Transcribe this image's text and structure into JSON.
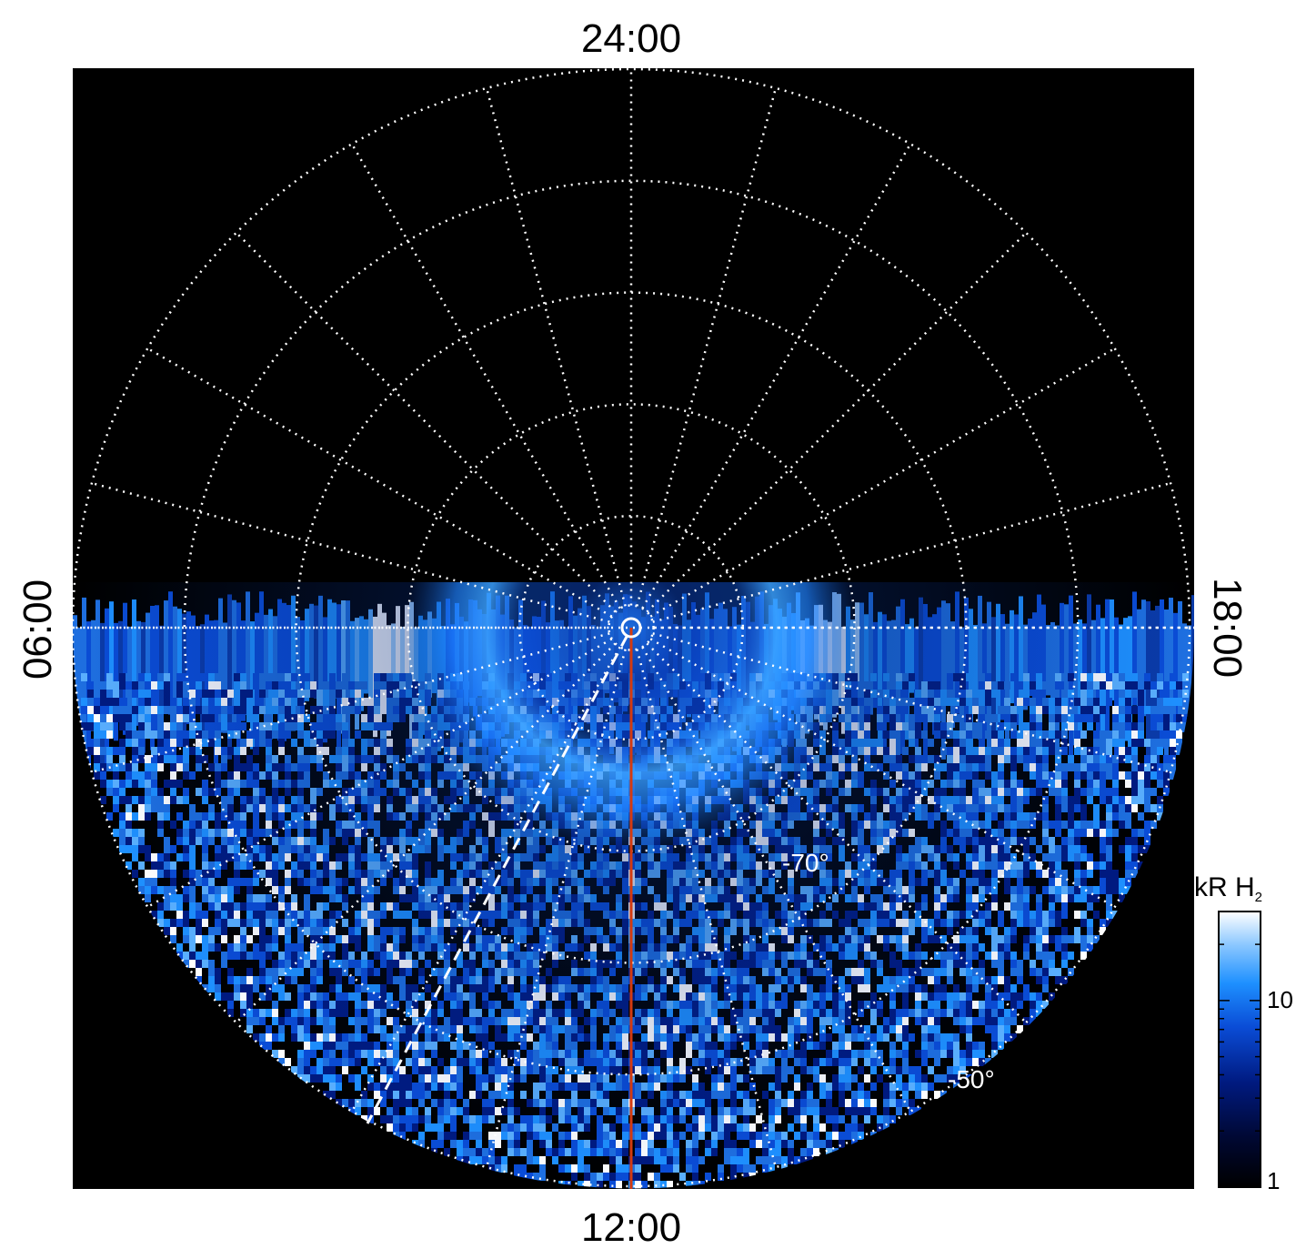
{
  "figure": {
    "lt_labels": {
      "top": "24:00",
      "bottom": "12:00",
      "left": "06:00",
      "right": "18:00"
    },
    "lat_labels": [
      "-70°",
      "-50°"
    ],
    "colorbar": {
      "title_main": "kR H",
      "title_sub": "2",
      "tick_labels": [
        "10",
        "1"
      ],
      "scale": "log",
      "range": [
        1,
        30
      ],
      "colors": [
        "#000000",
        "#000833",
        "#001a80",
        "#0a4cd6",
        "#1e90ff",
        "#8cc8ff",
        "#ffffff"
      ]
    },
    "colors": {
      "background": "#000000",
      "grid": "#ffffff",
      "noon_meridian": "#d43a10",
      "dashed_track": "#ffffff"
    },
    "grid": {
      "colatitude_rings_deg": [
        2,
        10,
        20,
        30,
        40,
        50
      ],
      "local_time_spoke_step_hours": 1,
      "grid_style": "dotted"
    },
    "observed_hemisphere": "dayside (06:00 through 12:00 to 18:00)"
  }
}
